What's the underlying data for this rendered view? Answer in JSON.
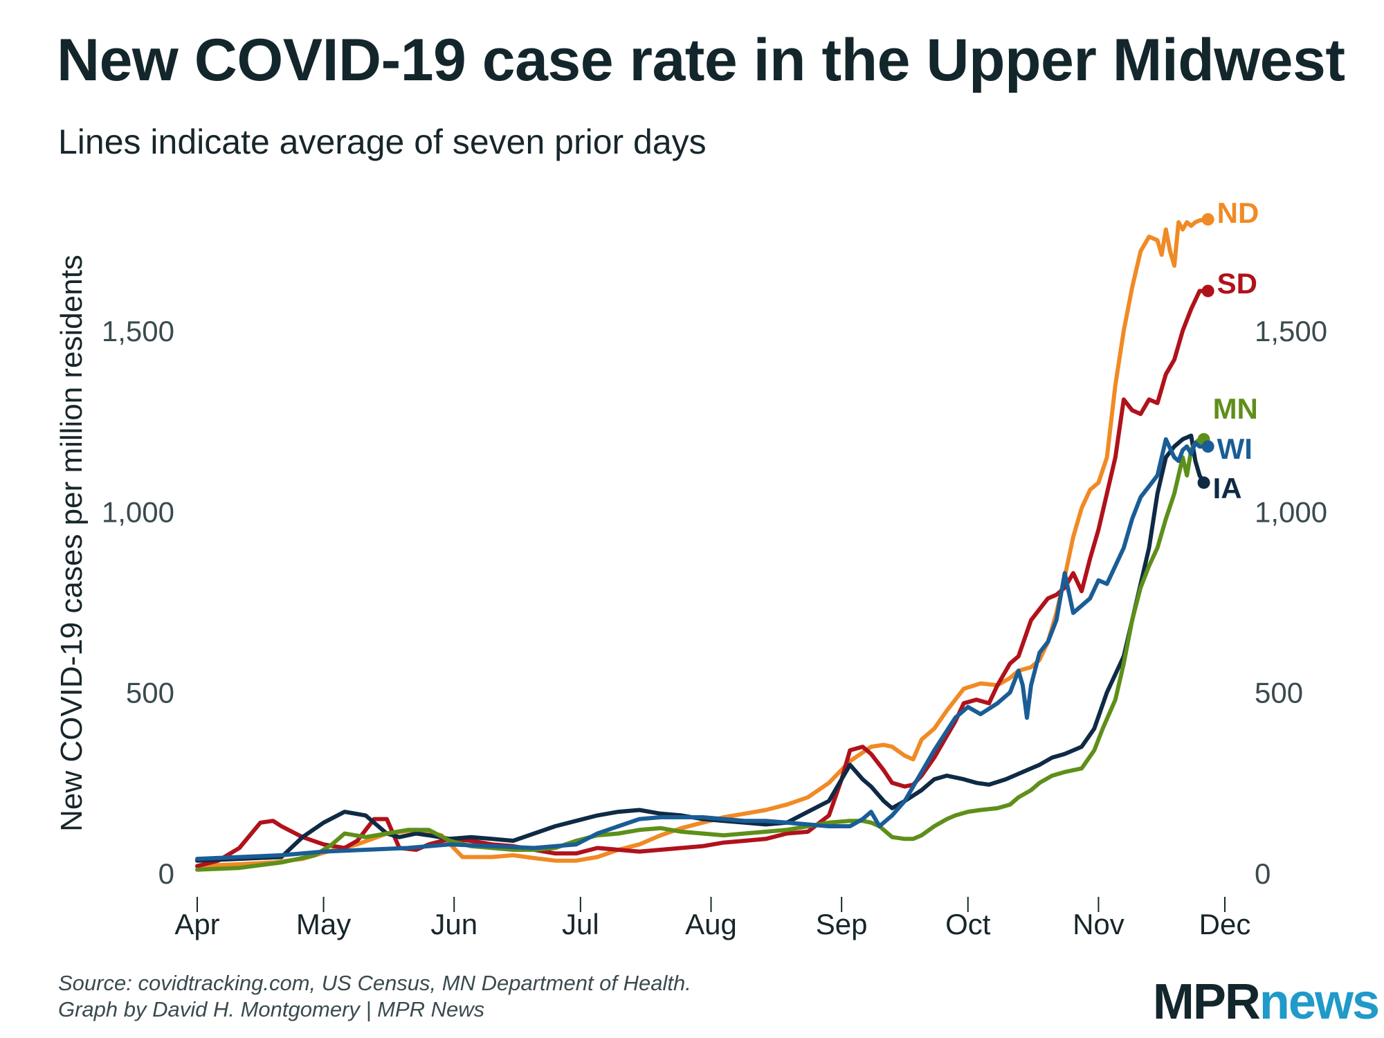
{
  "title": "New COVID-19 case rate in the Upper Midwest",
  "subtitle": "Lines indicate average of seven prior days",
  "footer": {
    "source": "Source: covidtracking.com, US Census, MN Department of Health.",
    "credit": "Graph by David H. Montgomery | MPR News"
  },
  "logo": {
    "mpr": "MPR",
    "news": "news"
  },
  "chart_data": {
    "type": "line",
    "title": "New COVID-19 case rate in the Upper Midwest",
    "subtitle": "Lines indicate average of seven prior days",
    "ylabel": "New COVID-19 cases per million residents",
    "xlabel": "",
    "ylim": [
      0,
      1800
    ],
    "xlim": [
      0,
      244
    ],
    "y_ticks": [
      0,
      500,
      1000,
      1500
    ],
    "y_tick_labels": [
      "0",
      "500",
      "1,000",
      "1,500"
    ],
    "x_ticks": [
      0,
      30,
      61,
      91,
      122,
      153,
      183,
      214,
      244
    ],
    "x_tick_labels": [
      "Apr",
      "May",
      "Jun",
      "Jul",
      "Aug",
      "Sep",
      "Oct",
      "Nov",
      "Dec"
    ],
    "x_unit": "days since Apr 1",
    "series": [
      {
        "name": "ND",
        "color": "#f08a24",
        "label_y": 1808,
        "x": [
          0,
          10,
          18,
          25,
          31,
          38,
          45,
          52,
          58,
          63,
          70,
          75,
          80,
          85,
          90,
          95,
          100,
          105,
          110,
          115,
          120,
          125,
          130,
          135,
          140,
          145,
          150,
          155,
          160,
          163,
          165,
          168,
          170,
          172,
          175,
          178,
          182,
          186,
          190,
          193,
          195,
          198,
          200,
          202,
          204,
          206,
          208,
          210,
          212,
          214,
          216,
          218,
          220,
          222,
          224,
          226,
          228,
          229,
          230,
          231,
          232,
          233,
          234,
          235,
          236,
          237,
          238,
          240
        ],
        "y": [
          20,
          25,
          30,
          40,
          60,
          80,
          110,
          120,
          105,
          45,
          45,
          50,
          42,
          35,
          35,
          45,
          65,
          80,
          105,
          125,
          140,
          155,
          165,
          175,
          190,
          210,
          250,
          310,
          350,
          355,
          350,
          325,
          315,
          370,
          400,
          450,
          510,
          525,
          520,
          540,
          560,
          570,
          590,
          640,
          720,
          820,
          930,
          1010,
          1060,
          1080,
          1150,
          1350,
          1500,
          1620,
          1720,
          1760,
          1750,
          1710,
          1780,
          1720,
          1680,
          1800,
          1780,
          1800,
          1790,
          1800,
          1805,
          1808
        ]
      },
      {
        "name": "SD",
        "color": "#b0121b",
        "label_y": 1610,
        "x": [
          0,
          5,
          10,
          15,
          18,
          20,
          25,
          30,
          35,
          38,
          42,
          45,
          48,
          52,
          55,
          60,
          65,
          70,
          75,
          80,
          85,
          90,
          95,
          100,
          105,
          110,
          115,
          120,
          125,
          130,
          135,
          140,
          145,
          150,
          153,
          155,
          158,
          160,
          163,
          165,
          168,
          170,
          172,
          175,
          178,
          180,
          182,
          185,
          188,
          190,
          193,
          195,
          198,
          200,
          202,
          204,
          206,
          208,
          210,
          212,
          214,
          216,
          218,
          220,
          222,
          224,
          226,
          228,
          230,
          232,
          234,
          236,
          238,
          240
        ],
        "y": [
          20,
          35,
          70,
          140,
          145,
          130,
          100,
          80,
          70,
          90,
          150,
          150,
          70,
          65,
          80,
          95,
          90,
          80,
          75,
          65,
          55,
          55,
          70,
          65,
          60,
          65,
          70,
          75,
          85,
          90,
          95,
          110,
          115,
          160,
          260,
          340,
          350,
          330,
          285,
          250,
          240,
          245,
          270,
          320,
          380,
          420,
          470,
          480,
          470,
          520,
          580,
          600,
          700,
          730,
          760,
          770,
          790,
          830,
          780,
          870,
          950,
          1050,
          1150,
          1310,
          1280,
          1270,
          1310,
          1300,
          1380,
          1420,
          1500,
          1560,
          1610,
          1610
        ]
      },
      {
        "name": "MN",
        "color": "#5e8f1a",
        "label_y": 1200,
        "x": [
          0,
          10,
          20,
          28,
          32,
          35,
          40,
          45,
          50,
          55,
          60,
          65,
          70,
          75,
          80,
          85,
          90,
          95,
          100,
          105,
          110,
          115,
          120,
          125,
          130,
          135,
          140,
          145,
          150,
          155,
          158,
          160,
          162,
          165,
          168,
          170,
          172,
          175,
          178,
          180,
          183,
          186,
          190,
          193,
          195,
          198,
          200,
          203,
          206,
          210,
          213,
          215,
          218,
          220,
          222,
          224,
          226,
          228,
          230,
          232,
          233,
          234,
          235,
          236,
          237,
          238,
          239
        ],
        "y": [
          10,
          15,
          30,
          50,
          80,
          110,
          100,
          110,
          120,
          120,
          90,
          75,
          70,
          65,
          65,
          70,
          90,
          105,
          110,
          120,
          125,
          115,
          110,
          105,
          110,
          115,
          120,
          130,
          140,
          145,
          145,
          140,
          130,
          100,
          95,
          95,
          105,
          130,
          150,
          160,
          170,
          175,
          180,
          190,
          210,
          230,
          250,
          270,
          280,
          290,
          340,
          400,
          480,
          580,
          700,
          790,
          850,
          900,
          980,
          1050,
          1100,
          1150,
          1100,
          1170,
          1190,
          1200,
          1200
        ]
      },
      {
        "name": "WI",
        "color": "#1a5d96",
        "label_y": 1180,
        "x": [
          0,
          10,
          20,
          30,
          40,
          50,
          60,
          70,
          80,
          90,
          95,
          100,
          105,
          110,
          115,
          120,
          125,
          130,
          135,
          140,
          145,
          150,
          155,
          158,
          160,
          162,
          165,
          168,
          170,
          175,
          180,
          183,
          186,
          190,
          193,
          195,
          196,
          197,
          198,
          200,
          202,
          204,
          206,
          208,
          210,
          212,
          214,
          216,
          218,
          220,
          222,
          224,
          226,
          228,
          230,
          232,
          233,
          234,
          235,
          236,
          237,
          238,
          239,
          240
        ],
        "y": [
          40,
          45,
          50,
          60,
          65,
          70,
          80,
          75,
          70,
          80,
          110,
          130,
          150,
          155,
          155,
          155,
          150,
          145,
          145,
          140,
          135,
          130,
          130,
          150,
          170,
          130,
          160,
          200,
          240,
          340,
          430,
          460,
          440,
          470,
          500,
          560,
          520,
          430,
          520,
          610,
          640,
          700,
          830,
          720,
          740,
          760,
          810,
          800,
          850,
          900,
          980,
          1040,
          1070,
          1100,
          1200,
          1150,
          1140,
          1170,
          1180,
          1160,
          1190,
          1180,
          1180,
          1180
        ]
      },
      {
        "name": "IA",
        "color": "#0f2a45",
        "label_y": 1080,
        "x": [
          0,
          10,
          20,
          25,
          30,
          35,
          40,
          45,
          48,
          52,
          55,
          60,
          65,
          70,
          75,
          80,
          85,
          90,
          95,
          100,
          105,
          110,
          115,
          120,
          125,
          130,
          135,
          140,
          145,
          150,
          153,
          155,
          158,
          160,
          163,
          165,
          168,
          172,
          175,
          178,
          182,
          185,
          188,
          192,
          195,
          198,
          200,
          203,
          206,
          210,
          213,
          216,
          220,
          223,
          226,
          228,
          230,
          232,
          234,
          236,
          237,
          238,
          239
        ],
        "y": [
          35,
          40,
          45,
          100,
          140,
          170,
          160,
          110,
          100,
          110,
          105,
          95,
          100,
          95,
          90,
          110,
          130,
          145,
          160,
          170,
          175,
          165,
          160,
          150,
          145,
          140,
          135,
          140,
          170,
          200,
          260,
          300,
          260,
          240,
          200,
          180,
          200,
          230,
          260,
          270,
          260,
          250,
          245,
          260,
          275,
          290,
          300,
          320,
          330,
          350,
          400,
          500,
          600,
          750,
          900,
          1050,
          1150,
          1180,
          1200,
          1210,
          1140,
          1100,
          1080
        ]
      }
    ]
  }
}
